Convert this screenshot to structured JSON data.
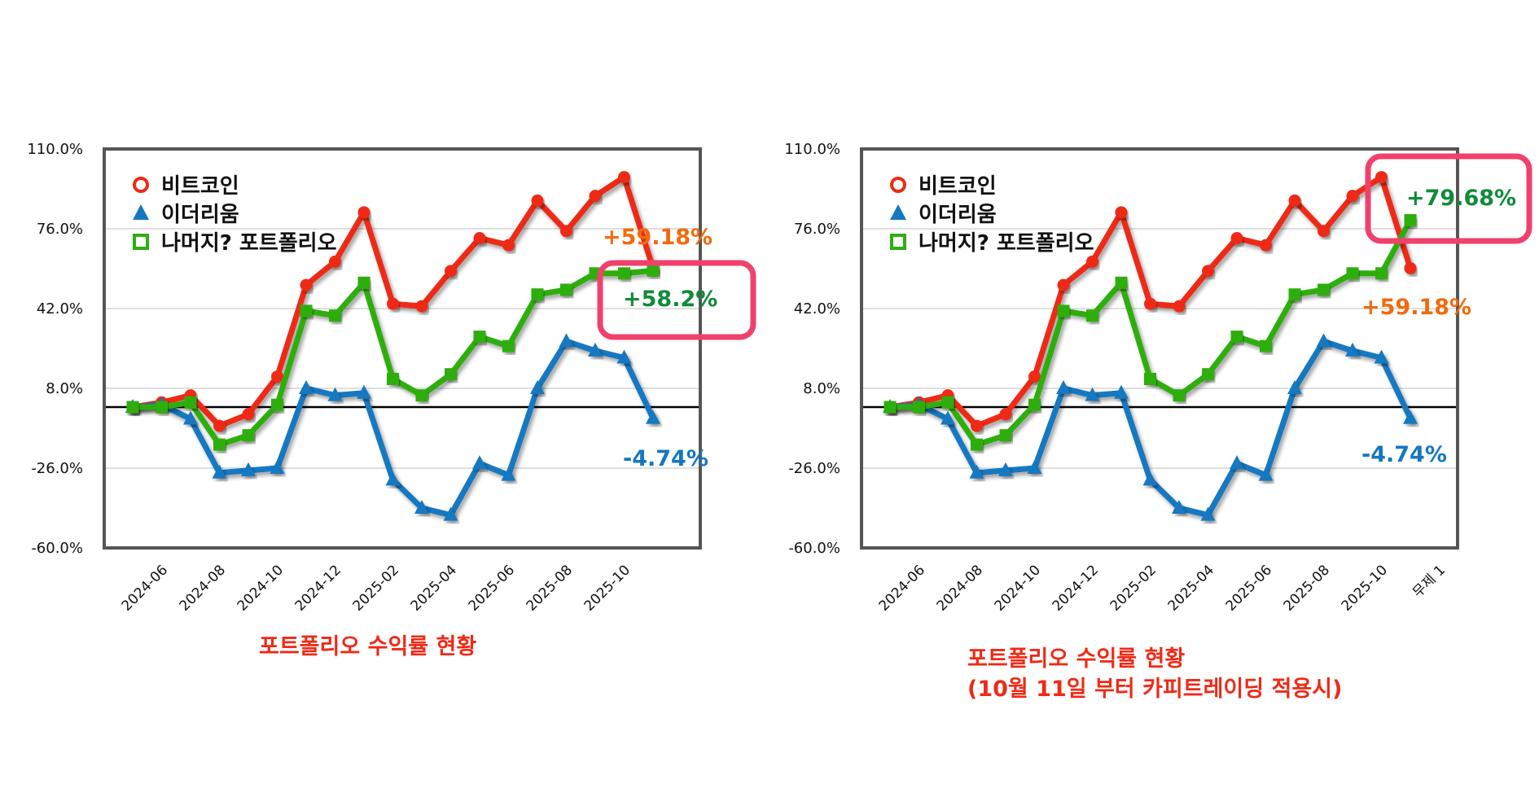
{
  "colors": {
    "bitcoin": "#ee2a16",
    "ethereum": "#1478c0",
    "rest": "#2eae10",
    "highlight_box": "#f0416c",
    "anno_orange": "#f26a0d",
    "anno_green": "#118a3a",
    "anno_blue": "#1478c0",
    "frame": "#555555",
    "grid": "#cccccc",
    "zero_line": "#000000"
  },
  "chart_data": [
    {
      "type": "line",
      "y_tick_labels": [
        "110.0%",
        "76.0%",
        "42.0%",
        "8.0%",
        "-26.0%",
        "-60.0%"
      ],
      "ylim": [
        -60,
        110
      ],
      "reference_line": 0,
      "grid": true,
      "legend_position": "top-left",
      "categories": [
        "2024-05",
        "2024-06",
        "2024-07",
        "2024-08",
        "2024-09",
        "2024-10",
        "2024-11",
        "2024-12",
        "2025-01",
        "2025-02",
        "2025-03",
        "2025-04",
        "2025-05",
        "2025-06",
        "2025-07",
        "2025-08",
        "2025-09",
        "2025-10",
        "2025-11"
      ],
      "x_tick_labels": [
        "2024-06",
        "2024-08",
        "2024-10",
        "2024-12",
        "2025-02",
        "2025-04",
        "2025-06",
        "2025-08",
        "2025-10"
      ],
      "series": [
        {
          "name": "비트코인",
          "color_key": "bitcoin",
          "marker": "circle",
          "values": [
            0,
            2,
            5,
            -8,
            -3,
            13,
            52,
            62,
            83,
            44,
            43,
            58,
            72,
            69,
            88,
            75,
            90,
            98,
            59.18
          ]
        },
        {
          "name": "이더리움",
          "color_key": "ethereum",
          "marker": "triangle",
          "values": [
            0,
            1,
            -5,
            -28,
            -27,
            -26,
            8,
            5,
            6,
            -31,
            -43,
            -46,
            -24,
            -29,
            8,
            28,
            24,
            21,
            -4.74
          ]
        },
        {
          "name": "나머지? 포트폴리오",
          "color_key": "rest",
          "marker": "square",
          "values": [
            0,
            0,
            2,
            -16,
            -12,
            1,
            41,
            39,
            53,
            12,
            5,
            14,
            30,
            26,
            48,
            50,
            57,
            57,
            58.2
          ]
        }
      ],
      "annotations": [
        {
          "text": "+59.18%",
          "color_key": "anno_orange"
        },
        {
          "text": "+58.2%",
          "color_key": "anno_green",
          "boxed": true
        },
        {
          "text": "-4.74%",
          "color_key": "anno_blue"
        }
      ],
      "caption": "포트폴리오 수익률 현황"
    },
    {
      "type": "line",
      "y_tick_labels": [
        "110.0%",
        "76.0%",
        "42.0%",
        "8.0%",
        "-26.0%",
        "-60.0%"
      ],
      "ylim": [
        -60,
        110
      ],
      "reference_line": 0,
      "grid": true,
      "legend_position": "top-left",
      "categories": [
        "2024-05",
        "2024-06",
        "2024-07",
        "2024-08",
        "2024-09",
        "2024-10",
        "2024-11",
        "2024-12",
        "2025-01",
        "2025-02",
        "2025-03",
        "2025-04",
        "2025-05",
        "2025-06",
        "2025-07",
        "2025-08",
        "2025-09",
        "2025-10",
        "2025-11"
      ],
      "x_tick_labels": [
        "2024-06",
        "2024-08",
        "2024-10",
        "2024-12",
        "2025-02",
        "2025-04",
        "2025-06",
        "2025-08",
        "2025-10",
        "무제 1"
      ],
      "series": [
        {
          "name": "비트코인",
          "color_key": "bitcoin",
          "marker": "circle",
          "values": [
            0,
            2,
            5,
            -8,
            -3,
            13,
            52,
            62,
            83,
            44,
            43,
            58,
            72,
            69,
            88,
            75,
            90,
            98,
            59.18
          ]
        },
        {
          "name": "이더리움",
          "color_key": "ethereum",
          "marker": "triangle",
          "values": [
            0,
            1,
            -5,
            -28,
            -27,
            -26,
            8,
            5,
            6,
            -31,
            -43,
            -46,
            -24,
            -29,
            8,
            28,
            24,
            21,
            -4.74
          ]
        },
        {
          "name": "나머지? 포트폴리오",
          "color_key": "rest",
          "marker": "square",
          "values": [
            0,
            0,
            2,
            -16,
            -12,
            1,
            41,
            39,
            53,
            12,
            5,
            14,
            30,
            26,
            48,
            50,
            57,
            57,
            79.68
          ]
        }
      ],
      "annotations": [
        {
          "text": "+79.68%",
          "color_key": "anno_green",
          "boxed": true
        },
        {
          "text": "+59.18%",
          "color_key": "anno_orange"
        },
        {
          "text": "-4.74%",
          "color_key": "anno_blue"
        }
      ],
      "caption": "포트폴리오 수익률 현황",
      "caption_line2": "(10월 11일 부터 카피트레이딩 적용시)"
    }
  ]
}
